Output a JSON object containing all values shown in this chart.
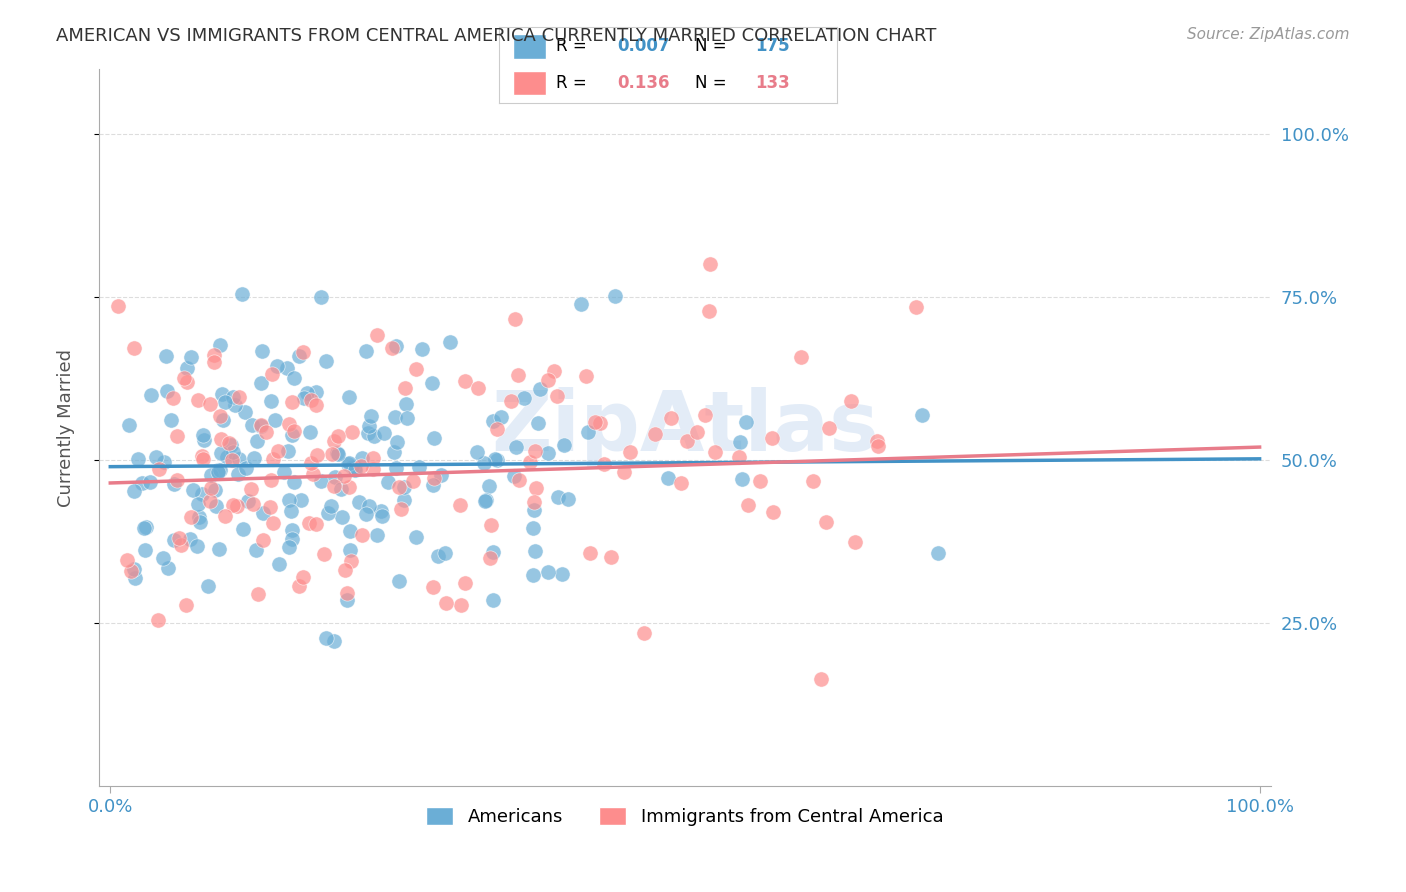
{
  "title": "AMERICAN VS IMMIGRANTS FROM CENTRAL AMERICA CURRENTLY MARRIED CORRELATION CHART",
  "source_text": "Source: ZipAtlas.com",
  "xlabel": "",
  "ylabel": "Currently Married",
  "x_tick_labels": [
    "0.0%",
    "100.0%"
  ],
  "y_tick_labels": [
    "25.0%",
    "50.0%",
    "75.0%",
    "100.0%"
  ],
  "y_tick_positions": [
    0.25,
    0.5,
    0.75,
    1.0
  ],
  "legend_line1": "R = 0.007   N = 175",
  "legend_line2": "R =  0.136   N = 133",
  "blue_color": "#6baed6",
  "pink_color": "#fd8d8d",
  "blue_line_color": "#4292c6",
  "pink_line_color": "#e87c8a",
  "blue_R": 0.007,
  "pink_R": 0.136,
  "blue_N": 175,
  "pink_N": 133,
  "blue_intercept": 0.49,
  "blue_slope": 0.012,
  "pink_intercept": 0.465,
  "pink_slope": 0.055,
  "watermark": "ZipAtlas",
  "background_color": "#ffffff",
  "grid_color": "#dddddd",
  "title_color": "#333333",
  "axis_label_color": "#4292c6",
  "random_seed_blue": 42,
  "random_seed_pink": 123
}
